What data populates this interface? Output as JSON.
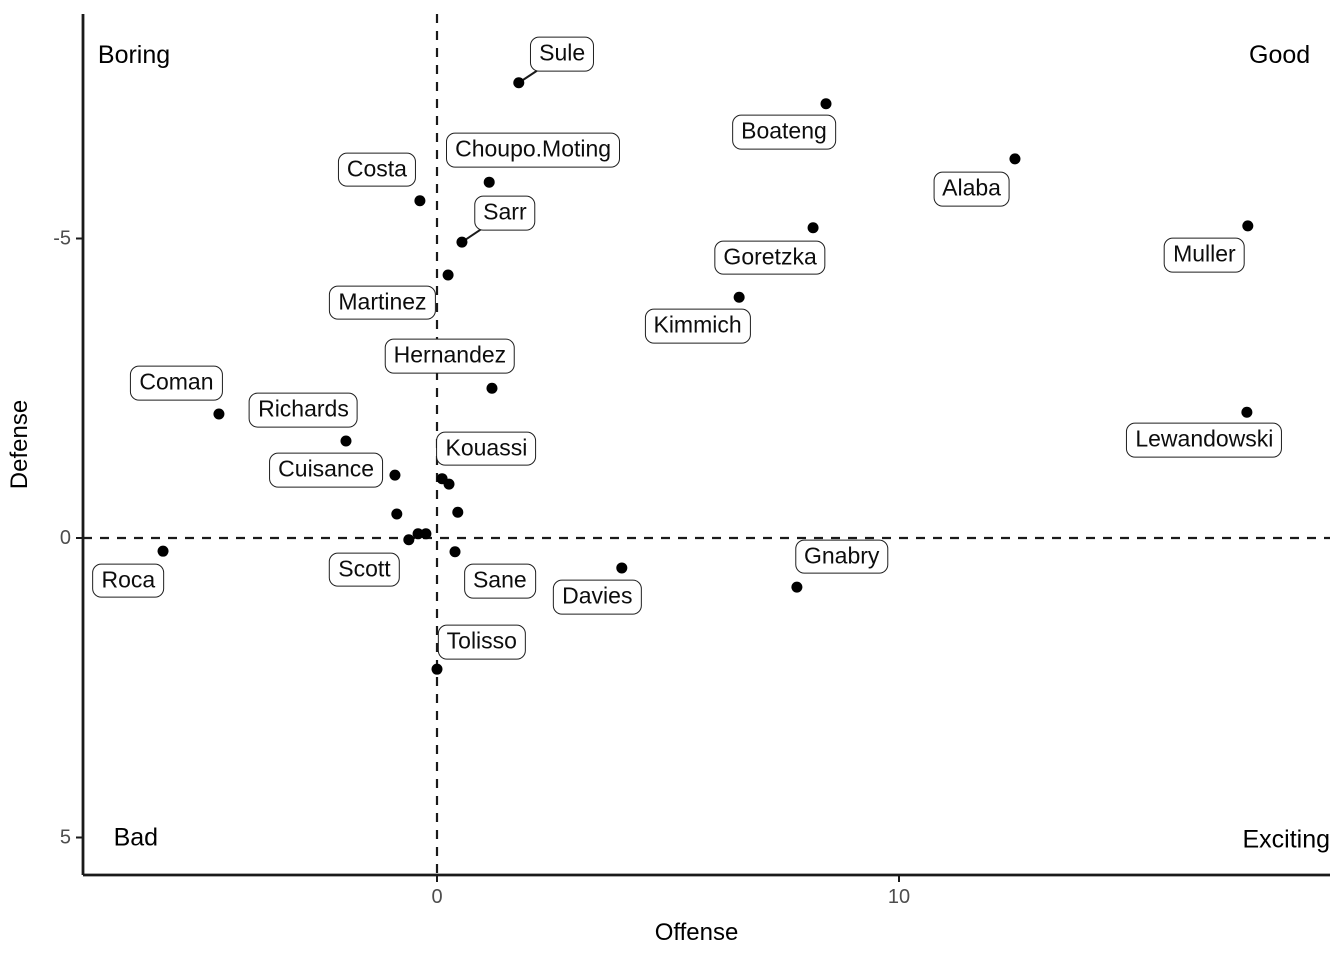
{
  "chart_data": {
    "type": "scatter",
    "title": "",
    "x_axis": {
      "title": "Offense",
      "ticks": [
        {
          "value": 0,
          "label": "0"
        },
        {
          "value": 10,
          "label": "10"
        }
      ]
    },
    "y_axis": {
      "title": "Defense",
      "reversed": true,
      "ticks": [
        {
          "value": -5,
          "label": "-5"
        },
        {
          "value": 0,
          "label": "0"
        },
        {
          "value": 5,
          "label": "5"
        }
      ]
    },
    "xlim": [
      -7.7,
      19.3
    ],
    "ylim": [
      -8.8,
      5.6
    ],
    "grid": false,
    "reference_lines": [
      {
        "axis": "x",
        "value": 0,
        "style": "dashed"
      },
      {
        "axis": "y",
        "value": 0,
        "style": "dashed"
      }
    ],
    "annotations": [
      {
        "text": "Boring",
        "x": -7.34,
        "y": -8.06,
        "anchor": "start"
      },
      {
        "text": "Good",
        "x": 18.9,
        "y": -8.06,
        "anchor": "end"
      },
      {
        "text": "Bad",
        "x": -7.0,
        "y": 5.0,
        "anchor": "start"
      },
      {
        "text": "Exciting",
        "x": 19.33,
        "y": 5.03,
        "anchor": "end"
      }
    ],
    "points": [
      {
        "player": "Sule",
        "x": 1.77,
        "y": -7.6,
        "label": {
          "x": 2.71,
          "y": -8.08
        },
        "leader": true
      },
      {
        "player": "Boateng",
        "x": 8.42,
        "y": -7.25,
        "label": {
          "x": 7.51,
          "y": -6.77
        }
      },
      {
        "player": "Alaba",
        "x": 12.51,
        "y": -6.33,
        "label": {
          "x": 11.57,
          "y": -5.83
        }
      },
      {
        "player": "Choupo.Moting",
        "x": 1.13,
        "y": -5.94,
        "label": {
          "x": 2.08,
          "y": -6.48
        }
      },
      {
        "player": "Costa",
        "x": -0.37,
        "y": -5.63,
        "label": {
          "x": -1.3,
          "y": -6.15
        }
      },
      {
        "player": "Muller",
        "x": 17.55,
        "y": -5.21,
        "label": {
          "x": 16.61,
          "y": -4.72
        }
      },
      {
        "player": "Goretzka",
        "x": 8.14,
        "y": -5.18,
        "label": {
          "x": 7.21,
          "y": -4.68
        }
      },
      {
        "player": "Sarr",
        "x": 0.54,
        "y": -4.94,
        "label": {
          "x": 1.47,
          "y": -5.42
        },
        "leader": true
      },
      {
        "player": "Martinez",
        "x": 0.24,
        "y": -4.39,
        "label": {
          "x": -1.18,
          "y": -3.93
        }
      },
      {
        "player": "Kimmich",
        "x": 6.54,
        "y": -4.02,
        "label": {
          "x": 5.64,
          "y": -3.54
        }
      },
      {
        "player": "Hernandez",
        "x": 1.19,
        "y": -2.5,
        "label": {
          "x": 0.28,
          "y": -3.04
        }
      },
      {
        "player": "Coman",
        "x": -4.72,
        "y": -2.07,
        "label": {
          "x": -5.64,
          "y": -2.59
        }
      },
      {
        "player": "Lewandowski",
        "x": 17.53,
        "y": -2.1,
        "label": {
          "x": 16.61,
          "y": -1.63
        }
      },
      {
        "player": "Richards",
        "x": -1.97,
        "y": -1.62,
        "label": {
          "x": -2.89,
          "y": -2.13
        }
      },
      {
        "player": "Cuisance",
        "x": -0.91,
        "y": -1.05,
        "label": {
          "x": -2.4,
          "y": -1.13
        }
      },
      {
        "player": "Kouassi",
        "x": 0.11,
        "y": -0.99,
        "label": {
          "x": 1.07,
          "y": -1.49
        }
      },
      {
        "player": null,
        "x": 0.26,
        "y": -0.9
      },
      {
        "player": null,
        "x": -0.87,
        "y": -0.4
      },
      {
        "player": null,
        "x": 0.45,
        "y": -0.43
      },
      {
        "player": "Scott",
        "x": -0.61,
        "y": 0.03,
        "label": {
          "x": -1.57,
          "y": 0.53
        }
      },
      {
        "player": null,
        "x": -0.41,
        "y": -0.07
      },
      {
        "player": null,
        "x": -0.24,
        "y": -0.07
      },
      {
        "player": "Sane",
        "x": 0.39,
        "y": 0.23,
        "label": {
          "x": 1.36,
          "y": 0.72
        }
      },
      {
        "player": "Roca",
        "x": -5.93,
        "y": 0.22,
        "label": {
          "x": -6.68,
          "y": 0.71
        }
      },
      {
        "player": "Davies",
        "x": 4.0,
        "y": 0.5,
        "label": {
          "x": 3.47,
          "y": 0.99
        }
      },
      {
        "player": "Gnabry",
        "x": 7.79,
        "y": 0.82,
        "label": {
          "x": 8.76,
          "y": 0.31
        }
      },
      {
        "player": "Tolisso",
        "x": 0.0,
        "y": 2.19,
        "label": {
          "x": 0.97,
          "y": 1.74
        }
      }
    ]
  },
  "colors": {
    "point": "#000000",
    "axis": "#1a1a1a",
    "tick_text": "#4d4d4d",
    "label_border": "#1f1f1f",
    "label_bg": "#ffffff",
    "text": "#000000"
  }
}
